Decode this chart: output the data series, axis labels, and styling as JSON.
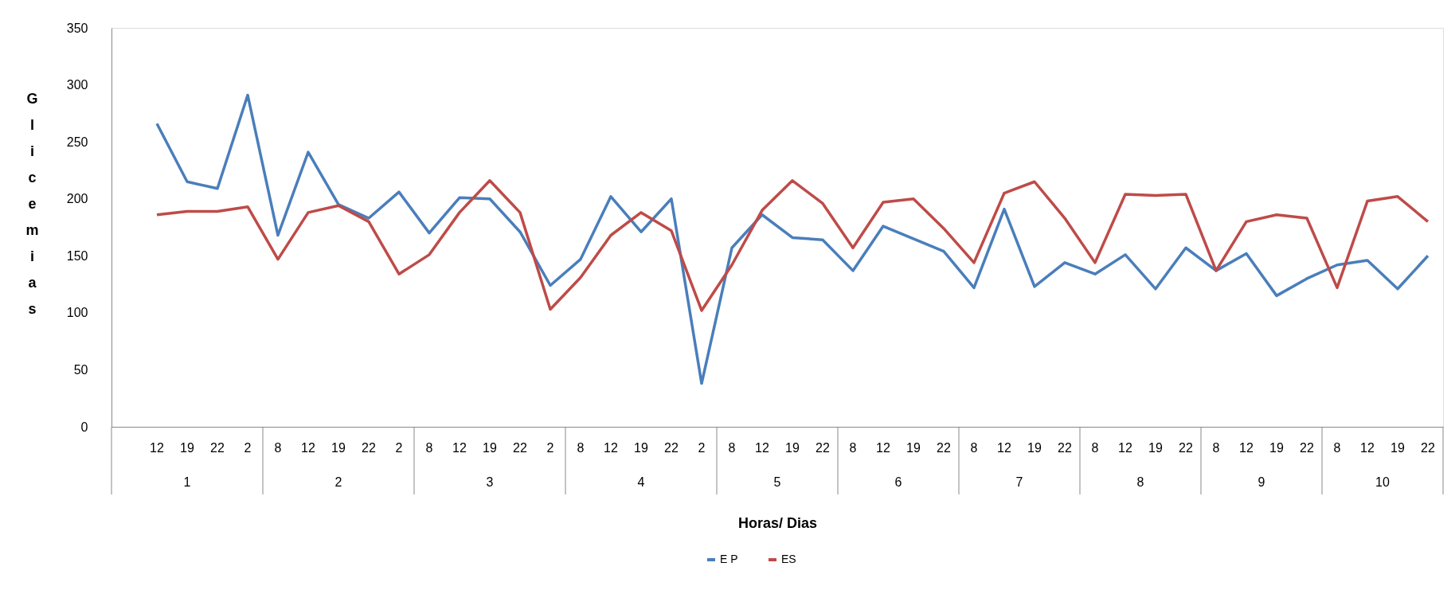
{
  "chart_data": {
    "type": "line",
    "xlabel": "Horas/ Dias",
    "ylabel": "Glicemias",
    "categories": [
      null,
      "12",
      "19",
      "22",
      "2",
      "8",
      "12",
      "19",
      "22",
      "2",
      "8",
      "12",
      "19",
      "22",
      "2",
      "8",
      "12",
      "19",
      "22",
      "2",
      "8",
      "12",
      "19",
      "22",
      "8",
      "12",
      "19",
      "22",
      "8",
      "12",
      "19",
      "22",
      "8",
      "12",
      "19",
      "22",
      "8",
      "12",
      "19",
      "22",
      "8",
      "12",
      "19",
      "22"
    ],
    "series": [
      {
        "name": "E P",
        "color": "#4a7ebb",
        "values": [
          null,
          266,
          215,
          209,
          291,
          168,
          241,
          195,
          183,
          206,
          170,
          201,
          200,
          171,
          124,
          147,
          202,
          171,
          200,
          38,
          157,
          186,
          166,
          164,
          137,
          176,
          165,
          154,
          122,
          191,
          123,
          144,
          134,
          151,
          121,
          157,
          137,
          152,
          115,
          130,
          142,
          146,
          121,
          150
        ]
      },
      {
        "name": "ES",
        "color": "#be4b48",
        "values": [
          null,
          186,
          189,
          189,
          193,
          147,
          188,
          194,
          180,
          134,
          151,
          188,
          216,
          188,
          103,
          131,
          168,
          188,
          172,
          102,
          142,
          190,
          216,
          196,
          157,
          197,
          200,
          174,
          144,
          205,
          215,
          183,
          144,
          204,
          203,
          204,
          137,
          180,
          186,
          183,
          122,
          198,
          202,
          180
        ]
      }
    ],
    "annotations": [
      "1",
      "2",
      "3",
      "4",
      "5",
      "6",
      "7",
      "8",
      "9",
      "10"
    ],
    "ylim": [
      0,
      350
    ],
    "yticks": [
      0,
      50,
      100,
      150,
      200,
      250,
      300,
      350
    ],
    "legend": "bottom",
    "line_style": "solid"
  }
}
